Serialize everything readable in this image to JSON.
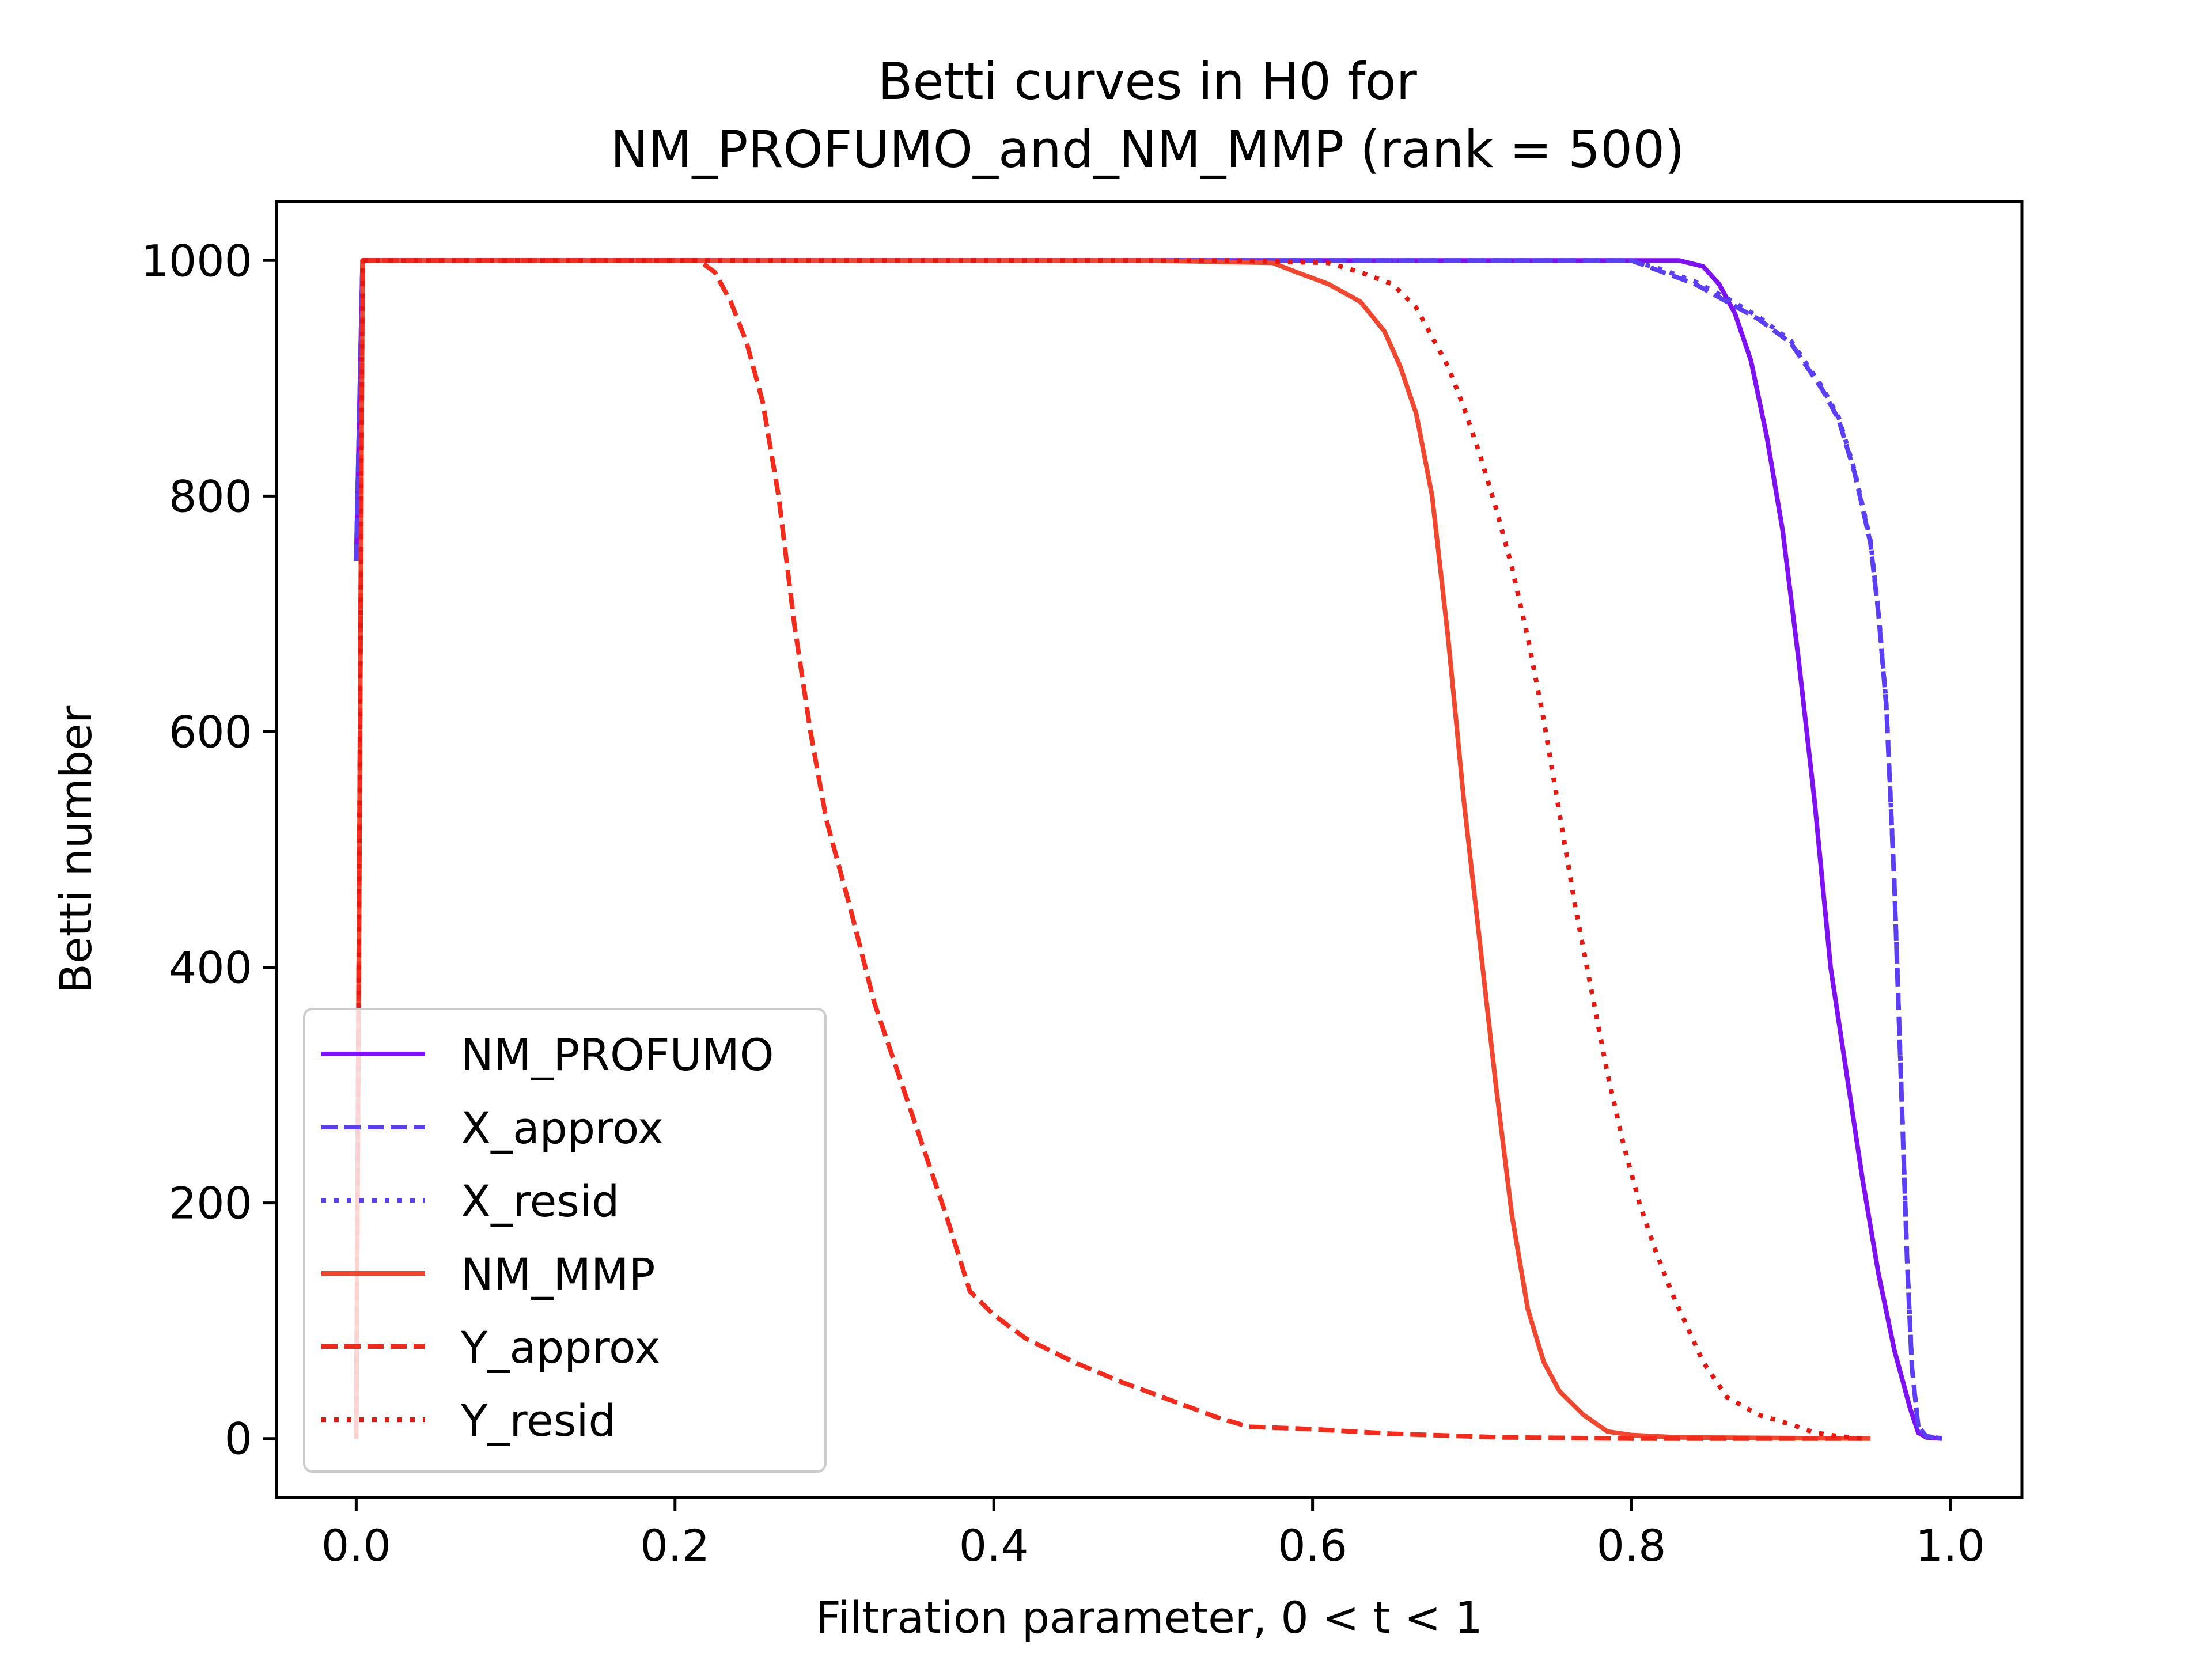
{
  "chart_data": {
    "type": "line",
    "title_line1": "Betti curves in H0 for",
    "title_line2": "NM_PROFUMO_and_NM_MMP (rank = 500)",
    "xlabel": "Filtration parameter, 0 < t < 1",
    "ylabel": "Betti number",
    "xlim": [
      -0.05,
      1.045
    ],
    "ylim": [
      -50,
      1050
    ],
    "xticks": [
      0.0,
      0.2,
      0.4,
      0.6,
      0.8,
      1.0
    ],
    "xtick_labels": [
      "0.0",
      "0.2",
      "0.4",
      "0.6",
      "0.8",
      "1.0"
    ],
    "yticks": [
      0,
      200,
      400,
      600,
      800,
      1000
    ],
    "ytick_labels": [
      "0",
      "200",
      "400",
      "600",
      "800",
      "1000"
    ],
    "grid": false,
    "legend_position": "lower-left",
    "series": [
      {
        "name": "NM_PROFUMO",
        "color": "#7f0ff5",
        "style": "solid",
        "points": [
          [
            0.0,
            745
          ],
          [
            0.004,
            1000
          ],
          [
            0.5,
            1000
          ],
          [
            0.83,
            1000
          ],
          [
            0.845,
            995
          ],
          [
            0.855,
            980
          ],
          [
            0.865,
            955
          ],
          [
            0.875,
            915
          ],
          [
            0.885,
            850
          ],
          [
            0.895,
            770
          ],
          [
            0.905,
            660
          ],
          [
            0.915,
            540
          ],
          [
            0.925,
            400
          ],
          [
            0.935,
            310
          ],
          [
            0.945,
            220
          ],
          [
            0.955,
            140
          ],
          [
            0.965,
            75
          ],
          [
            0.975,
            25
          ],
          [
            0.98,
            5
          ],
          [
            0.985,
            1
          ],
          [
            0.995,
            0
          ]
        ]
      },
      {
        "name": "X_approx",
        "color": "#5a3ef8",
        "style": "dashed",
        "points": [
          [
            0.0,
            745
          ],
          [
            0.004,
            1000
          ],
          [
            0.5,
            1000
          ],
          [
            0.8,
            1000
          ],
          [
            0.82,
            990
          ],
          [
            0.84,
            980
          ],
          [
            0.86,
            965
          ],
          [
            0.88,
            950
          ],
          [
            0.9,
            930
          ],
          [
            0.91,
            910
          ],
          [
            0.92,
            890
          ],
          [
            0.93,
            865
          ],
          [
            0.94,
            820
          ],
          [
            0.95,
            760
          ],
          [
            0.955,
            700
          ],
          [
            0.96,
            620
          ],
          [
            0.965,
            470
          ],
          [
            0.97,
            270
          ],
          [
            0.973,
            150
          ],
          [
            0.976,
            60
          ],
          [
            0.98,
            10
          ],
          [
            0.985,
            2
          ],
          [
            0.995,
            0
          ]
        ]
      },
      {
        "name": "X_resid",
        "color": "#5a3ef8",
        "style": "dotted",
        "points": [
          [
            0.0,
            745
          ],
          [
            0.004,
            1000
          ],
          [
            0.5,
            1000
          ],
          [
            0.8,
            1000
          ],
          [
            0.82,
            992
          ],
          [
            0.84,
            982
          ],
          [
            0.86,
            968
          ],
          [
            0.88,
            952
          ],
          [
            0.9,
            932
          ],
          [
            0.91,
            912
          ],
          [
            0.92,
            892
          ],
          [
            0.93,
            867
          ],
          [
            0.94,
            822
          ],
          [
            0.95,
            762
          ],
          [
            0.955,
            702
          ],
          [
            0.96,
            622
          ],
          [
            0.965,
            472
          ],
          [
            0.97,
            272
          ],
          [
            0.973,
            152
          ],
          [
            0.976,
            62
          ],
          [
            0.98,
            10
          ],
          [
            0.985,
            2
          ],
          [
            0.995,
            0
          ]
        ]
      },
      {
        "name": "NM_MMP",
        "color": "#f2472e",
        "style": "solid",
        "points": [
          [
            0.0,
            0
          ],
          [
            0.004,
            1000
          ],
          [
            0.5,
            1000
          ],
          [
            0.575,
            998
          ],
          [
            0.59,
            990
          ],
          [
            0.61,
            980
          ],
          [
            0.63,
            965
          ],
          [
            0.645,
            940
          ],
          [
            0.655,
            910
          ],
          [
            0.665,
            870
          ],
          [
            0.675,
            800
          ],
          [
            0.685,
            680
          ],
          [
            0.695,
            540
          ],
          [
            0.705,
            420
          ],
          [
            0.715,
            300
          ],
          [
            0.725,
            190
          ],
          [
            0.735,
            110
          ],
          [
            0.745,
            65
          ],
          [
            0.755,
            40
          ],
          [
            0.77,
            20
          ],
          [
            0.785,
            6
          ],
          [
            0.8,
            3
          ],
          [
            0.83,
            1
          ],
          [
            0.95,
            0
          ]
        ]
      },
      {
        "name": "Y_approx",
        "color": "#f52a1a",
        "style": "dashed",
        "points": [
          [
            0.0,
            0
          ],
          [
            0.004,
            1000
          ],
          [
            0.215,
            1000
          ],
          [
            0.225,
            990
          ],
          [
            0.235,
            965
          ],
          [
            0.245,
            930
          ],
          [
            0.255,
            880
          ],
          [
            0.265,
            800
          ],
          [
            0.275,
            690
          ],
          [
            0.285,
            600
          ],
          [
            0.295,
            525
          ],
          [
            0.31,
            450
          ],
          [
            0.325,
            370
          ],
          [
            0.34,
            310
          ],
          [
            0.355,
            250
          ],
          [
            0.37,
            190
          ],
          [
            0.385,
            125
          ],
          [
            0.4,
            105
          ],
          [
            0.42,
            85
          ],
          [
            0.45,
            65
          ],
          [
            0.48,
            48
          ],
          [
            0.51,
            33
          ],
          [
            0.54,
            18
          ],
          [
            0.56,
            10
          ],
          [
            0.6,
            8
          ],
          [
            0.65,
            4
          ],
          [
            0.72,
            1
          ],
          [
            0.8,
            0
          ],
          [
            0.945,
            0
          ]
        ]
      },
      {
        "name": "Y_resid",
        "color": "#e8160e",
        "style": "dotted",
        "points": [
          [
            0.0,
            0
          ],
          [
            0.004,
            1000
          ],
          [
            0.55,
            1000
          ],
          [
            0.61,
            998
          ],
          [
            0.63,
            990
          ],
          [
            0.65,
            980
          ],
          [
            0.665,
            960
          ],
          [
            0.675,
            935
          ],
          [
            0.685,
            910
          ],
          [
            0.695,
            875
          ],
          [
            0.705,
            835
          ],
          [
            0.715,
            790
          ],
          [
            0.725,
            740
          ],
          [
            0.735,
            680
          ],
          [
            0.745,
            610
          ],
          [
            0.755,
            530
          ],
          [
            0.765,
            450
          ],
          [
            0.775,
            380
          ],
          [
            0.785,
            310
          ],
          [
            0.795,
            250
          ],
          [
            0.805,
            200
          ],
          [
            0.815,
            160
          ],
          [
            0.825,
            125
          ],
          [
            0.835,
            95
          ],
          [
            0.845,
            65
          ],
          [
            0.86,
            35
          ],
          [
            0.88,
            20
          ],
          [
            0.9,
            12
          ],
          [
            0.915,
            5
          ],
          [
            0.93,
            2
          ],
          [
            0.945,
            0
          ]
        ]
      }
    ]
  }
}
